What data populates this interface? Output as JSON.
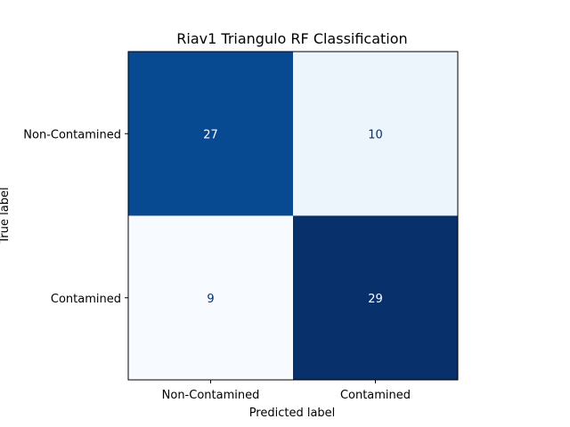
{
  "chart_data": {
    "type": "heatmap",
    "title": "Riav1 Triangulo RF Classification",
    "xlabel": "Predicted label",
    "ylabel": "True label",
    "x_categories": [
      "Non-Contamined",
      "Contamined"
    ],
    "y_categories": [
      "Non-Contamined",
      "Contamined"
    ],
    "values": [
      [
        27,
        10
      ],
      [
        9,
        29
      ]
    ],
    "colormap": "Blues",
    "grid": false,
    "colors": {
      "dark_text": "#08306b",
      "light_text": "#ffffff",
      "low": "#f7fbff",
      "high": "#08306b"
    }
  }
}
